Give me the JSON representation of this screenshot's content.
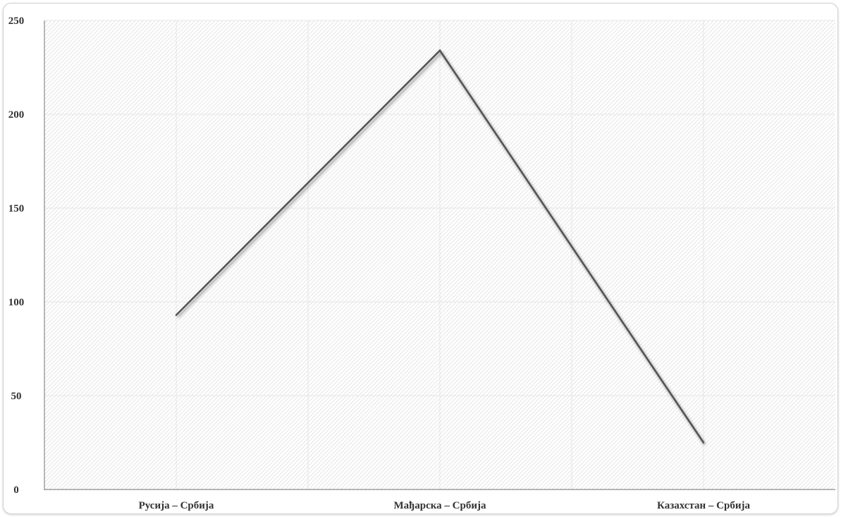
{
  "chart_data": {
    "type": "line",
    "categories": [
      "Русија – Србија",
      "Мађарска – Србија",
      "Казахстан – Србија"
    ],
    "series": [
      {
        "values": [
          93,
          234,
          25
        ],
        "color": "#555555"
      }
    ],
    "title": "",
    "xlabel": "",
    "ylabel": "",
    "ylim": [
      0,
      250
    ],
    "yticks": [
      "0",
      "50",
      "100",
      "150",
      "200",
      "250"
    ],
    "grid": true,
    "legend": "none"
  }
}
